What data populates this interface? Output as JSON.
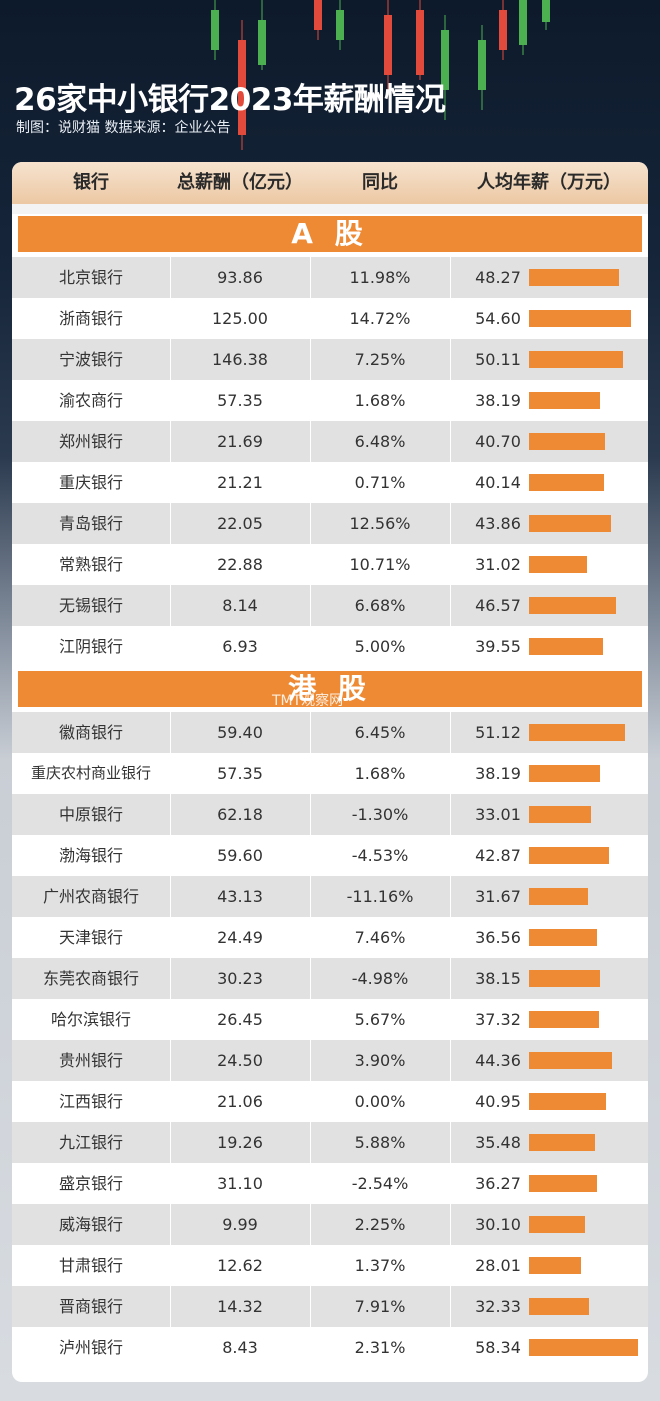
{
  "title": "26家中小银行2023年薪酬情况",
  "credit": "制图：说财猫 数据来源：企业公告",
  "watermark": "TMT观察网",
  "colors": {
    "accent": "#ee8a34",
    "header_bg": "#ecc8a3",
    "candle_up": "#4caf50",
    "candle_down": "#e24a3b"
  },
  "chart_data": {
    "type": "table",
    "columns": [
      "银行",
      "总薪酬（亿元）",
      "同比",
      "人均年薪（万元）"
    ],
    "sections": [
      {
        "label": "A 股",
        "rows": [
          {
            "bank": "北京银行",
            "total": "93.86",
            "yoy": "11.98%",
            "avg": 48.27
          },
          {
            "bank": "浙商银行",
            "total": "125.00",
            "yoy": "14.72%",
            "avg": 54.6
          },
          {
            "bank": "宁波银行",
            "total": "146.38",
            "yoy": "7.25%",
            "avg": 50.11
          },
          {
            "bank": "渝农商行",
            "total": "57.35",
            "yoy": "1.68%",
            "avg": 38.19
          },
          {
            "bank": "郑州银行",
            "total": "21.69",
            "yoy": "6.48%",
            "avg": 40.7
          },
          {
            "bank": "重庆银行",
            "total": "21.21",
            "yoy": "0.71%",
            "avg": 40.14
          },
          {
            "bank": "青岛银行",
            "total": "22.05",
            "yoy": "12.56%",
            "avg": 43.86
          },
          {
            "bank": "常熟银行",
            "total": "22.88",
            "yoy": "10.71%",
            "avg": 31.02
          },
          {
            "bank": "无锡银行",
            "total": "8.14",
            "yoy": "6.68%",
            "avg": 46.57
          },
          {
            "bank": "江阴银行",
            "total": "6.93",
            "yoy": "5.00%",
            "avg": 39.55
          }
        ]
      },
      {
        "label": "港 股",
        "rows": [
          {
            "bank": "徽商银行",
            "total": "59.40",
            "yoy": "6.45%",
            "avg": 51.12
          },
          {
            "bank": "重庆农村商业银行",
            "total": "57.35",
            "yoy": "1.68%",
            "avg": 38.19
          },
          {
            "bank": "中原银行",
            "total": "62.18",
            "yoy": "-1.30%",
            "avg": 33.01
          },
          {
            "bank": "渤海银行",
            "total": "59.60",
            "yoy": "-4.53%",
            "avg": 42.87
          },
          {
            "bank": "广州农商银行",
            "total": "43.13",
            "yoy": "-11.16%",
            "avg": 31.67
          },
          {
            "bank": "天津银行",
            "total": "24.49",
            "yoy": "7.46%",
            "avg": 36.56
          },
          {
            "bank": "东莞农商银行",
            "total": "30.23",
            "yoy": "-4.98%",
            "avg": 38.15
          },
          {
            "bank": "哈尔滨银行",
            "total": "26.45",
            "yoy": "5.67%",
            "avg": 37.32
          },
          {
            "bank": "贵州银行",
            "total": "24.50",
            "yoy": "3.90%",
            "avg": 44.36
          },
          {
            "bank": "江西银行",
            "total": "21.06",
            "yoy": "0.00%",
            "avg": 40.95
          },
          {
            "bank": "九江银行",
            "total": "19.26",
            "yoy": "5.88%",
            "avg": 35.48
          },
          {
            "bank": "盛京银行",
            "total": "31.10",
            "yoy": "-2.54%",
            "avg": 36.27
          },
          {
            "bank": "威海银行",
            "total": "9.99",
            "yoy": "2.25%",
            "avg": 30.1
          },
          {
            "bank": "甘肃银行",
            "total": "12.62",
            "yoy": "1.37%",
            "avg": 28.01
          },
          {
            "bank": "晋商银行",
            "total": "14.32",
            "yoy": "7.91%",
            "avg": 32.33
          },
          {
            "bank": "泸州银行",
            "total": "8.43",
            "yoy": "2.31%",
            "avg": 58.34
          }
        ]
      }
    ]
  }
}
